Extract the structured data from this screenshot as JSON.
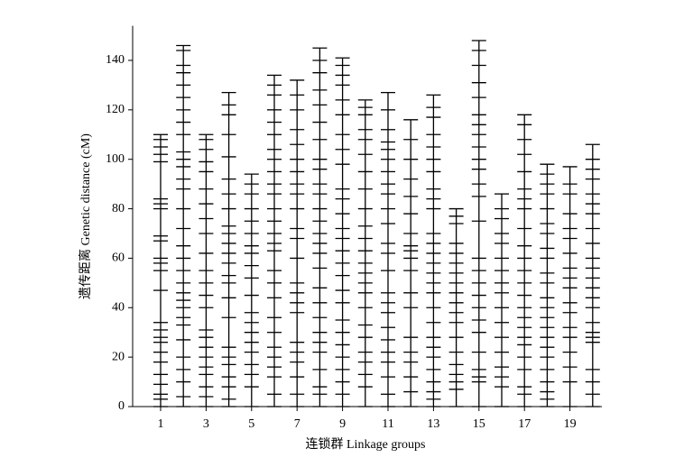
{
  "chart_data": {
    "type": "linkage",
    "y_label": "遗传距离 Genetic distance (cM)",
    "x_label": "连锁群 Linkage groups",
    "categories": [
      "1",
      null,
      "3",
      null,
      "5",
      null,
      "7",
      null,
      "9",
      null,
      "11",
      null,
      "13",
      null,
      "15",
      null,
      "17",
      null,
      "19",
      null
    ],
    "color": "#000000",
    "ylim": [
      0,
      154
    ],
    "yticks": [
      0,
      20,
      40,
      60,
      80,
      100,
      120,
      140
    ],
    "groups": [
      {
        "markers": [
          0,
          3,
          5,
          9,
          13,
          18,
          22,
          26,
          28,
          31,
          34,
          47,
          55,
          58,
          60,
          67,
          69,
          80,
          82,
          84,
          99,
          102,
          105,
          108,
          110
        ]
      },
      {
        "markers": [
          0,
          4,
          10,
          15,
          20,
          27,
          33,
          36,
          40,
          43,
          46,
          50,
          55,
          60,
          65,
          72,
          80,
          88,
          92,
          97,
          100,
          103,
          110,
          115,
          120,
          125,
          130,
          135,
          138,
          144,
          146
        ]
      },
      {
        "markers": [
          0,
          4,
          8,
          13,
          16,
          20,
          24,
          28,
          31,
          40,
          45,
          50,
          55,
          62,
          70,
          76,
          82,
          88,
          95,
          99,
          104,
          108,
          110
        ]
      },
      {
        "markers": [
          0,
          3,
          8,
          12,
          17,
          20,
          24,
          36,
          44,
          50,
          53,
          58,
          62,
          66,
          70,
          73,
          80,
          86,
          92,
          101,
          110,
          118,
          122,
          127
        ]
      },
      {
        "markers": [
          0,
          8,
          13,
          17,
          22,
          26,
          30,
          34,
          38,
          45,
          52,
          57,
          62,
          65,
          70,
          75,
          80,
          86,
          90,
          94
        ]
      },
      {
        "markers": [
          0,
          5,
          12,
          16,
          20,
          24,
          30,
          36,
          44,
          50,
          55,
          63,
          66,
          70,
          75,
          80,
          86,
          90,
          95,
          100,
          104,
          110,
          115,
          120,
          126,
          130,
          134
        ]
      },
      {
        "markers": [
          0,
          5,
          12,
          18,
          22,
          26,
          38,
          42,
          46,
          50,
          60,
          68,
          72,
          80,
          86,
          90,
          95,
          100,
          106,
          112,
          120,
          126,
          132
        ]
      },
      {
        "markers": [
          0,
          5,
          8,
          15,
          22,
          26,
          30,
          36,
          42,
          48,
          56,
          62,
          66,
          70,
          75,
          80,
          86,
          90,
          96,
          100,
          108,
          115,
          122,
          128,
          135,
          140,
          145
        ]
      },
      {
        "markers": [
          0,
          5,
          10,
          15,
          20,
          25,
          30,
          35,
          42,
          47,
          53,
          58,
          63,
          68,
          72,
          78,
          84,
          88,
          98,
          104,
          110,
          118,
          124,
          130,
          134,
          138,
          141
        ]
      },
      {
        "markers": [
          0,
          8,
          13,
          18,
          22,
          28,
          33,
          40,
          46,
          50,
          54,
          58,
          63,
          68,
          73,
          80,
          88,
          95,
          102,
          108,
          112,
          118,
          121,
          124
        ]
      },
      {
        "markers": [
          0,
          5,
          12,
          18,
          22,
          27,
          32,
          38,
          42,
          46,
          55,
          62,
          66,
          74,
          80,
          86,
          90,
          95,
          100,
          104,
          107,
          112,
          120,
          127
        ]
      },
      {
        "markers": [
          0,
          6,
          12,
          18,
          22,
          28,
          40,
          46,
          55,
          60,
          63,
          65,
          70,
          78,
          85,
          92,
          100,
          108,
          116
        ]
      },
      {
        "markers": [
          0,
          3,
          6,
          10,
          15,
          20,
          24,
          28,
          34,
          40,
          46,
          50,
          54,
          58,
          62,
          66,
          70,
          80,
          84,
          88,
          95,
          100,
          105,
          110,
          117,
          121,
          126
        ]
      },
      {
        "markers": [
          0,
          7,
          10,
          13,
          17,
          22,
          28,
          34,
          38,
          42,
          46,
          50,
          54,
          58,
          62,
          66,
          74,
          77,
          80
        ]
      },
      {
        "markers": [
          0,
          10,
          12,
          15,
          22,
          30,
          35,
          40,
          45,
          50,
          55,
          60,
          75,
          85,
          90,
          96,
          100,
          105,
          110,
          114,
          118,
          125,
          131,
          138,
          144,
          148
        ]
      },
      {
        "markers": [
          0,
          8,
          12,
          16,
          22,
          28,
          34,
          40,
          46,
          50,
          55,
          60,
          66,
          70,
          76,
          80,
          86
        ]
      },
      {
        "markers": [
          0,
          5,
          8,
          15,
          20,
          25,
          28,
          32,
          36,
          40,
          45,
          50,
          55,
          60,
          65,
          72,
          80,
          84,
          88,
          95,
          102,
          108,
          114,
          118
        ]
      },
      {
        "markers": [
          0,
          3,
          6,
          10,
          15,
          20,
          24,
          28,
          32,
          36,
          40,
          44,
          50,
          54,
          60,
          64,
          70,
          74,
          80,
          86,
          90,
          94,
          98
        ]
      },
      {
        "markers": [
          0,
          10,
          16,
          22,
          28,
          32,
          38,
          42,
          48,
          52,
          56,
          62,
          68,
          72,
          78,
          86,
          90,
          97
        ]
      },
      {
        "markers": [
          0,
          5,
          10,
          15,
          26,
          28,
          30,
          34,
          40,
          44,
          48,
          52,
          56,
          60,
          66,
          72,
          78,
          82,
          86,
          92,
          96,
          100,
          106
        ]
      }
    ]
  }
}
